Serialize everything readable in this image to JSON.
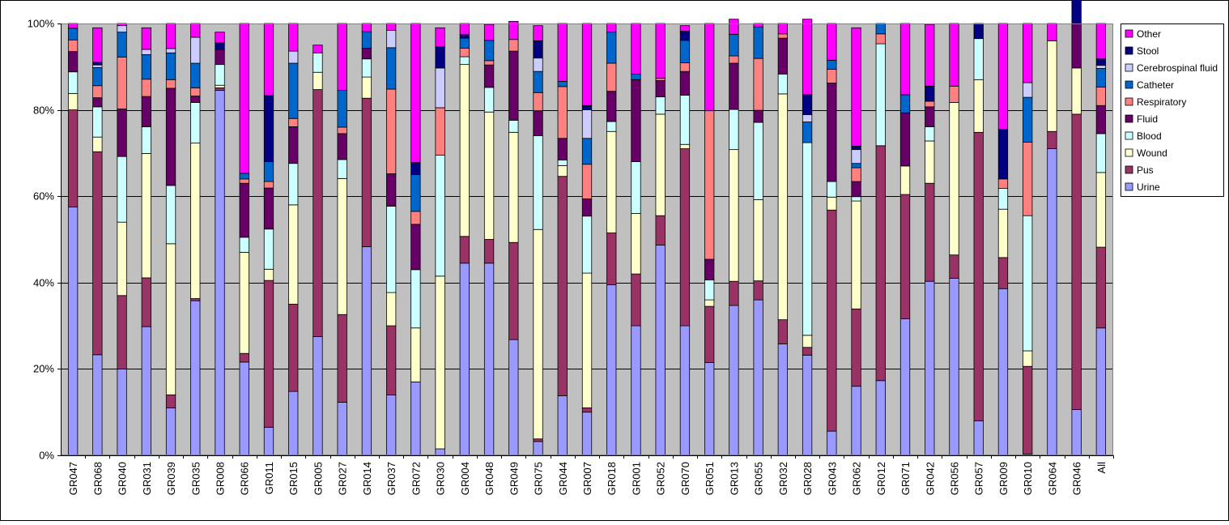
{
  "chart_data": {
    "type": "bar",
    "stacked": true,
    "percent_scale": true,
    "title": "",
    "xlabel": "",
    "ylabel": "",
    "ylim": [
      0,
      100
    ],
    "yticks": [
      "0%",
      "20%",
      "40%",
      "60%",
      "80%",
      "100%"
    ],
    "grid": true,
    "legend_position": "right",
    "plot_background": "#c0c0c0",
    "categories": [
      "GR047",
      "GR068",
      "GR040",
      "GR031",
      "GR039",
      "GR035",
      "GR008",
      "GR066",
      "GR011",
      "GR015",
      "GR005",
      "GR027",
      "GR014",
      "GR037",
      "GR072",
      "GR030",
      "GR004",
      "GR048",
      "GR049",
      "GR075",
      "GR044",
      "GR007",
      "GR018",
      "GR001",
      "GR052",
      "GR070",
      "GR051",
      "GR013",
      "GR055",
      "GR032",
      "GR028",
      "GR043",
      "GR062",
      "GR012",
      "GR071",
      "GR042",
      "GR056",
      "GR057",
      "GR009",
      "GR010",
      "GR064",
      "GR046",
      "All"
    ],
    "series": [
      {
        "name": "Urine",
        "color": "#9999ff",
        "values": [
          57.5,
          23.3,
          20,
          29.8,
          11,
          35.8,
          84.5,
          21.6,
          6.5,
          14.8,
          27.5,
          12.3,
          48.3,
          14,
          17,
          1.5,
          44.5,
          44.5,
          26.8,
          3.2,
          13.8,
          10,
          39.5,
          30,
          48.7,
          30,
          21.5,
          34.7,
          36,
          25.8,
          23.2,
          5.6,
          16,
          17.3,
          31.6,
          40.3,
          41,
          8,
          38.6,
          0.3,
          71,
          10.6,
          29.5
        ]
      },
      {
        "name": "Pus",
        "color": "#993366",
        "values": [
          22.5,
          47,
          17,
          11.3,
          3,
          0.5,
          0.6,
          2,
          34,
          20.2,
          57.2,
          20.3,
          34.4,
          16,
          0,
          0,
          6.2,
          5.5,
          22.5,
          0.6,
          50.8,
          1,
          12,
          12,
          6.8,
          41,
          13,
          5.6,
          4.4,
          5.6,
          1.8,
          51.2,
          17.9,
          54.4,
          28.8,
          22.7,
          5.4,
          66.8,
          7.2,
          20.3,
          4,
          68.4,
          18.7
        ]
      },
      {
        "name": "Wound",
        "color": "#ffffcc",
        "values": [
          3.8,
          3.4,
          17,
          28.8,
          35,
          36,
          0.6,
          23.4,
          2.6,
          23,
          4,
          31.5,
          4.9,
          7.7,
          12.5,
          40,
          39.8,
          29.5,
          25.5,
          48.5,
          2.5,
          31.2,
          23.5,
          14,
          23.5,
          1,
          1.5,
          30.5,
          18.8,
          52.3,
          2.8,
          3,
          25,
          0,
          6.6,
          9.8,
          35.3,
          12.2,
          11.2,
          3.6,
          21,
          10.7,
          17.3
        ]
      },
      {
        "name": "Blood",
        "color": "#ccffff",
        "values": [
          5,
          7,
          15.2,
          6.2,
          13.5,
          9.4,
          4.8,
          3.5,
          9.3,
          9.6,
          4.5,
          4.4,
          4.2,
          20,
          13.5,
          28,
          1.8,
          5.7,
          2.8,
          21.7,
          1.3,
          13.2,
          2.3,
          12,
          4,
          11.4,
          4.6,
          9.3,
          17.9,
          4.6,
          44.6,
          3.6,
          1,
          23.6,
          0,
          3.3,
          0,
          9.5,
          4.8,
          31.3,
          0,
          0,
          9
        ]
      },
      {
        "name": "Fluid",
        "color": "#660066",
        "values": [
          4.7,
          2.1,
          11,
          7,
          22.5,
          1.5,
          3.5,
          12.5,
          9.5,
          8.5,
          0,
          6,
          2.5,
          7.5,
          10.5,
          0,
          0,
          5.2,
          16,
          5.8,
          5,
          4,
          7,
          19,
          3.8,
          5.5,
          4.8,
          10.7,
          2.8,
          8.3,
          0,
          22.8,
          3.5,
          0,
          12.3,
          4.6,
          0,
          0,
          0,
          0,
          0,
          10.3,
          6.5
        ]
      },
      {
        "name": "Respiratory",
        "color": "#ff8080",
        "values": [
          2.7,
          2.8,
          12,
          4,
          2,
          1.9,
          0,
          1,
          1.5,
          1.9,
          0,
          1.5,
          0,
          19.6,
          3,
          11,
          2,
          1,
          2.7,
          4.2,
          12,
          8,
          6.5,
          0,
          0.5,
          2,
          34.4,
          1.7,
          12,
          1,
          0,
          3.2,
          3.2,
          2.3,
          0,
          1.3,
          3.8,
          0,
          2.2,
          17,
          0,
          0,
          4.3
        ]
      },
      {
        "name": "Catheter",
        "color": "#0066cc",
        "values": [
          2.7,
          4.2,
          5.8,
          5.7,
          6.2,
          5.7,
          0,
          1.3,
          4.6,
          12.8,
          0,
          8.5,
          3.8,
          9.6,
          8.5,
          0,
          2.3,
          4.7,
          0,
          4.9,
          1.2,
          6,
          7.2,
          1.3,
          0,
          5.2,
          0,
          5,
          7.3,
          0,
          4.8,
          2.1,
          1,
          2.4,
          4.2,
          0,
          0,
          0,
          0,
          10.4,
          0,
          0,
          4.3
        ]
      },
      {
        "name": "Cerebrospinal fluid",
        "color": "#ccccff",
        "values": [
          0,
          0.6,
          1.5,
          1.2,
          1,
          6,
          0,
          0,
          0,
          2.8,
          0,
          0,
          0,
          4,
          0,
          9.2,
          0,
          0,
          0,
          3.1,
          0,
          6.6,
          0,
          0,
          0,
          0,
          0,
          0,
          0,
          0,
          1.7,
          0,
          3.2,
          0,
          0,
          0,
          0,
          0,
          0,
          3.4,
          0,
          0,
          0.7
        ]
      },
      {
        "name": "Stool",
        "color": "#000080",
        "values": [
          0,
          0.6,
          0,
          0,
          0,
          0,
          1.5,
          0,
          15.3,
          0,
          0,
          0,
          0,
          0,
          2.8,
          4.9,
          0.8,
          0,
          0,
          4,
          0,
          1,
          0,
          0,
          0,
          2.1,
          0,
          0,
          0,
          0,
          4.6,
          0,
          0.8,
          0,
          0,
          3.5,
          0,
          3.5,
          11.5,
          0,
          0,
          10,
          1.5
        ]
      },
      {
        "name": "Other",
        "color": "#ff00ff",
        "values": [
          1.1,
          8,
          0.5,
          5,
          5.8,
          3.2,
          2.5,
          34.7,
          16.7,
          6.4,
          1.8,
          15.5,
          1.9,
          1.6,
          32.2,
          4.4,
          2.6,
          3.7,
          4.2,
          3.5,
          13.4,
          19,
          2,
          11.7,
          12.7,
          1.3,
          20.2,
          3.5,
          0.8,
          2.4,
          17.5,
          8.5,
          27.4,
          0,
          16.5,
          14.3,
          14.5,
          0,
          24.5,
          13.7,
          4,
          0,
          8.2
        ]
      }
    ]
  }
}
